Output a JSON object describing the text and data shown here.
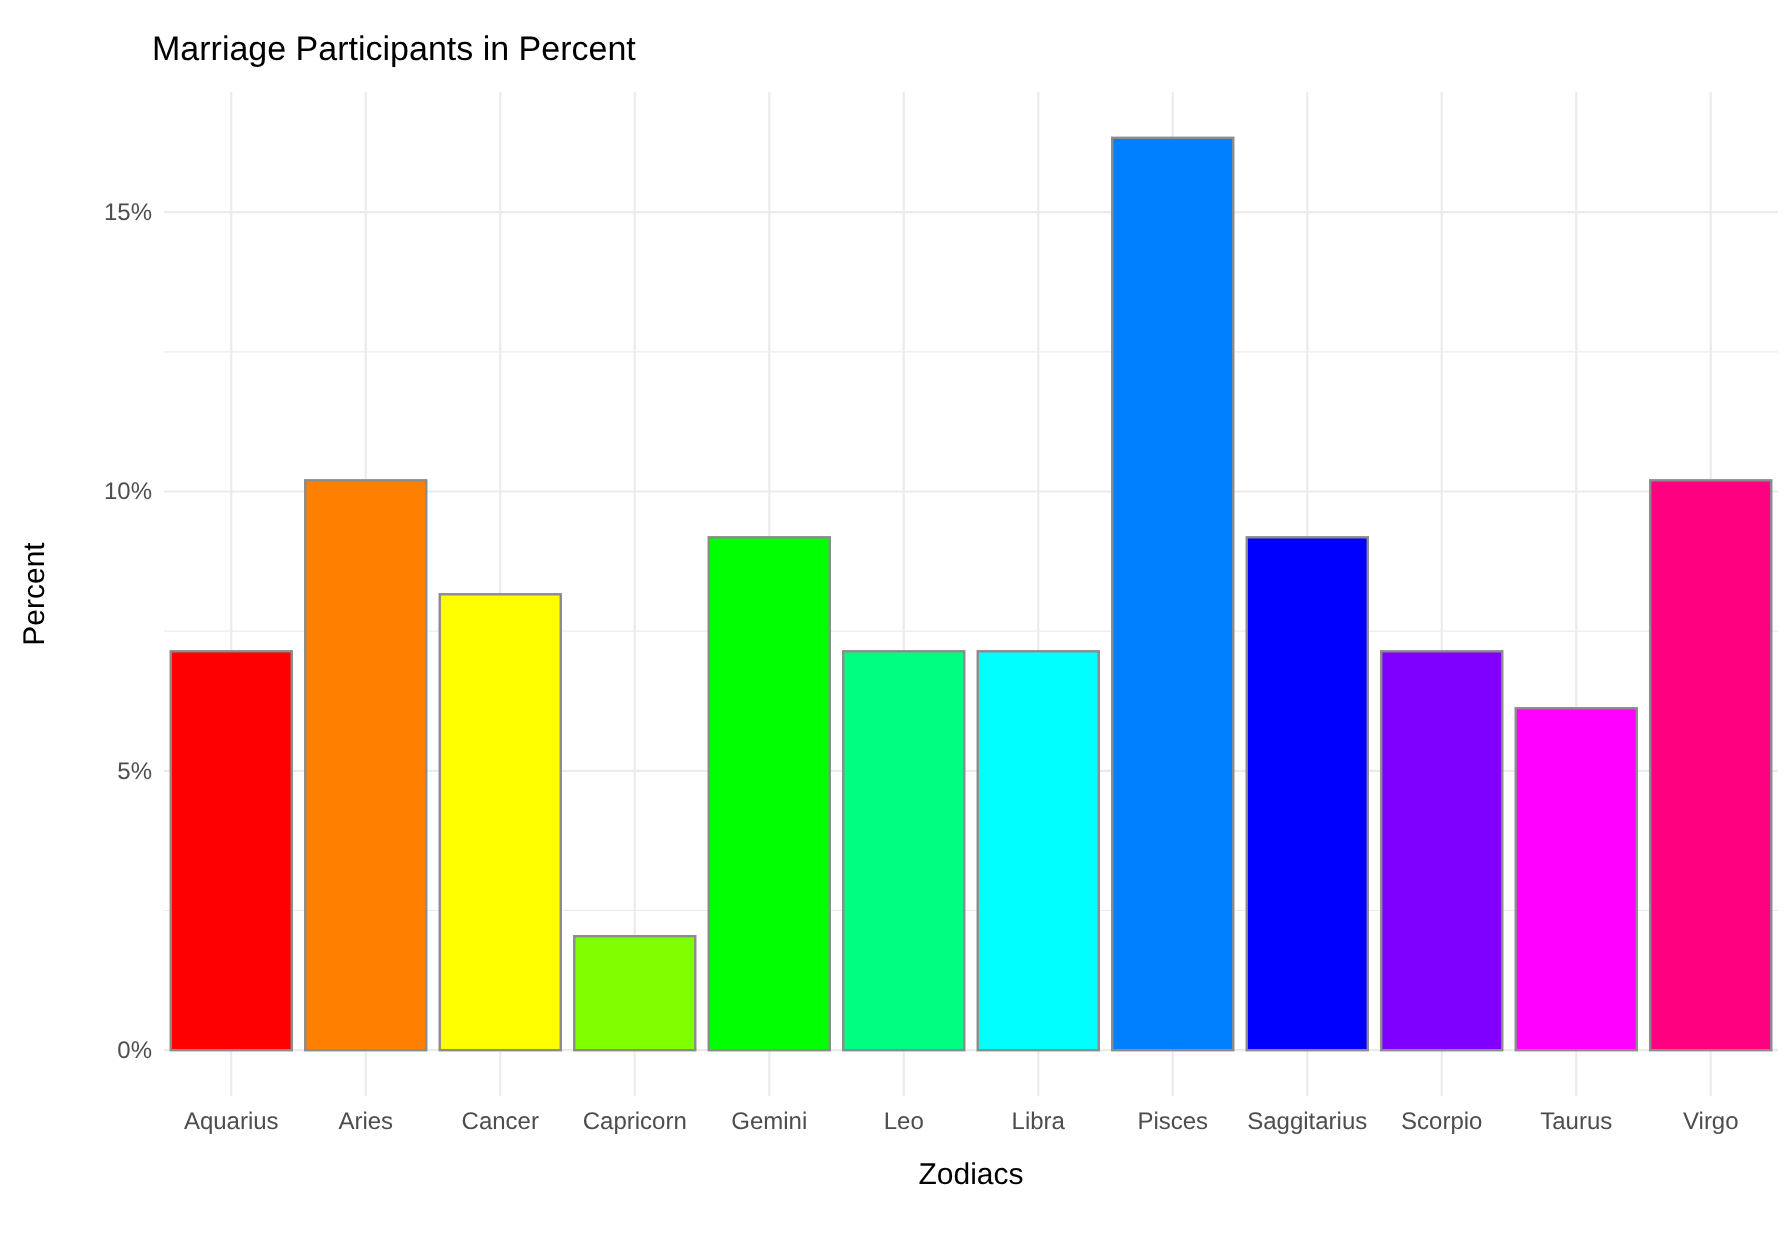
{
  "chart_data": {
    "type": "bar",
    "title": "Marriage Participants in Percent",
    "xlabel": "Zodiacs",
    "ylabel": "Percent",
    "categories": [
      "Aquarius",
      "Aries",
      "Cancer",
      "Capricorn",
      "Gemini",
      "Leo",
      "Libra",
      "Pisces",
      "Saggitarius",
      "Scorpio",
      "Taurus",
      "Virgo"
    ],
    "values": [
      7.14,
      10.2,
      8.16,
      2.04,
      9.18,
      7.14,
      7.14,
      16.33,
      9.18,
      7.14,
      6.12,
      10.2
    ],
    "colors": [
      "#ff0000",
      "#ff8000",
      "#ffff00",
      "#80ff00",
      "#00ff00",
      "#00ff80",
      "#00ffff",
      "#0080ff",
      "#0000ff",
      "#8000ff",
      "#ff00ff",
      "#ff0080"
    ],
    "ylim": [
      -0.82,
      17.15
    ],
    "yticks": [
      {
        "value": 0,
        "label": "0%"
      },
      {
        "value": 2.5,
        "label": null
      },
      {
        "value": 5,
        "label": "5%"
      },
      {
        "value": 7.5,
        "label": null
      },
      {
        "value": 10,
        "label": "10%"
      },
      {
        "value": 12.5,
        "label": null
      },
      {
        "value": 15,
        "label": "15%"
      }
    ],
    "grid": true
  }
}
